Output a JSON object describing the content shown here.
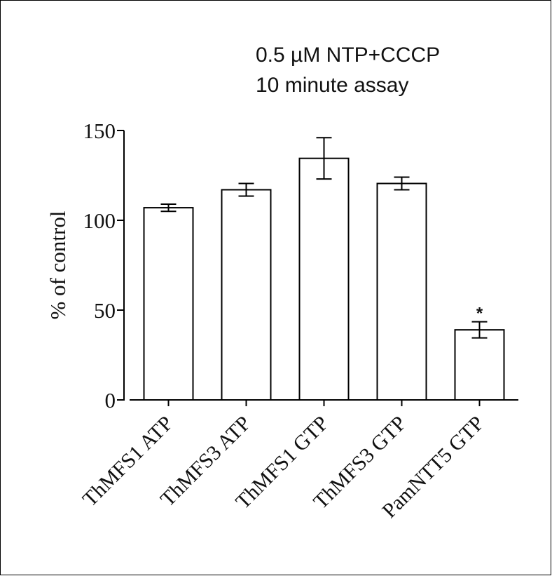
{
  "chart_data": {
    "type": "bar",
    "title": [
      "0.5 µM NTP+CCCP",
      "10 minute assay"
    ],
    "ylabel": "% of control",
    "ylim": [
      0,
      150
    ],
    "yticks": [
      0,
      50,
      100,
      150
    ],
    "categories": [
      "ThMFS1 ATP",
      "ThMFS3 ATP",
      "ThMFS1 GTP",
      "ThMFS3 GTP",
      "PamNTT5 GTP"
    ],
    "values": [
      107,
      117,
      134.5,
      120.5,
      39
    ],
    "errors": [
      2,
      3.5,
      11.5,
      3.5,
      4.5
    ],
    "annotations": [
      "",
      "",
      "",
      "",
      "*"
    ],
    "bar_fill": "#ffffff",
    "bar_stroke": "#000000",
    "grid": false
  }
}
